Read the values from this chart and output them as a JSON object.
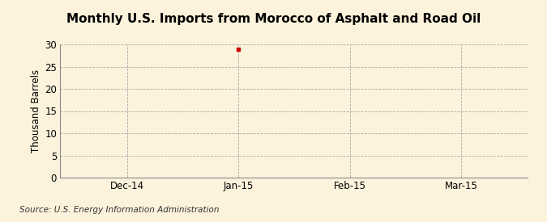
{
  "title": "Monthly U.S. Imports from Morocco of Asphalt and Road Oil",
  "ylabel": "Thousand Barrels",
  "source_text": "Source: U.S. Energy Information Administration",
  "background_color": "#fdf3dc",
  "plot_bg_color": "#fdf3dc",
  "x_tick_labels": [
    "Dec-14",
    "Jan-15",
    "Feb-15",
    "Mar-15"
  ],
  "x_tick_positions": [
    0,
    1,
    2,
    3
  ],
  "ylim": [
    0,
    30
  ],
  "yticks": [
    0,
    5,
    10,
    15,
    20,
    25,
    30
  ],
  "data_x": 1,
  "data_y": 29,
  "data_color": "#cc0000",
  "grid_color": "#aaaaaa",
  "vline_color": "#aaaaaa",
  "spine_color": "#888888",
  "title_fontsize": 11,
  "axis_fontsize": 8.5,
  "tick_fontsize": 8.5,
  "source_fontsize": 7.5,
  "xlim": [
    -0.6,
    3.6
  ]
}
